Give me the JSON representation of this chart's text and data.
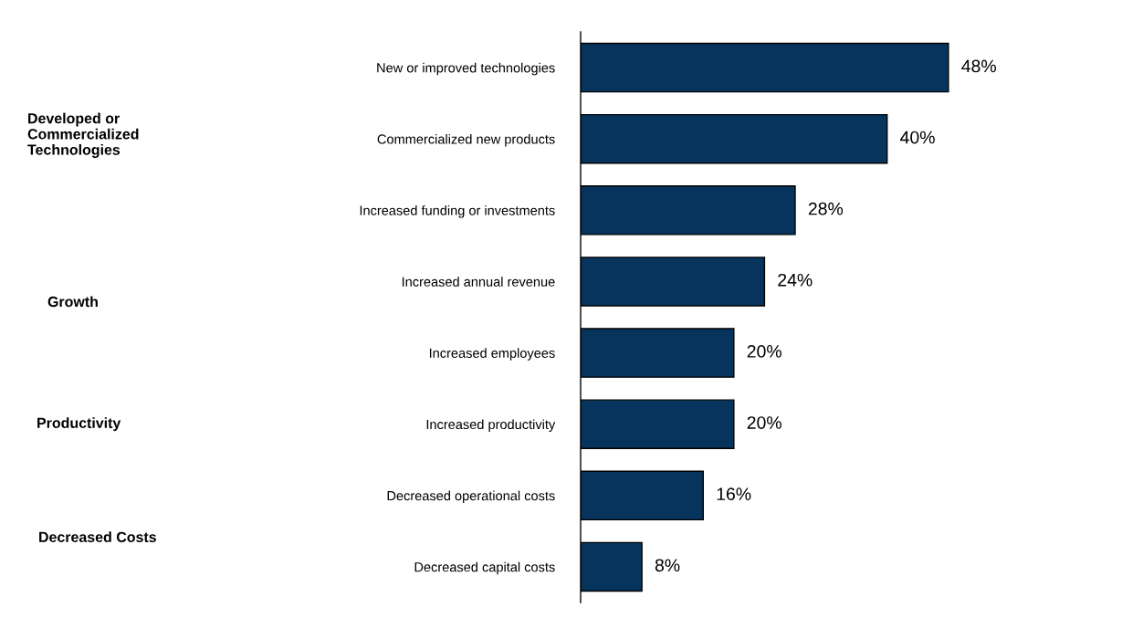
{
  "chart_data": {
    "type": "bar",
    "orientation": "horizontal",
    "categories": [
      "New or improved technologies",
      "Commercialized new products",
      "Increased funding or investments",
      "Increased annual revenue",
      "Increased employees",
      "Increased productivity",
      "Decreased operational costs",
      "Decreased capital costs"
    ],
    "values": [
      48,
      40,
      28,
      24,
      20,
      20,
      16,
      8
    ],
    "value_labels": [
      "48%",
      "40%",
      "28%",
      "24%",
      "20%",
      "20%",
      "16%",
      "8%"
    ],
    "color": "#06345c",
    "annotations": [
      "Developed or\nCommercialized\nTechnologies",
      "Growth",
      "Productivity",
      "Decreased Costs"
    ]
  }
}
